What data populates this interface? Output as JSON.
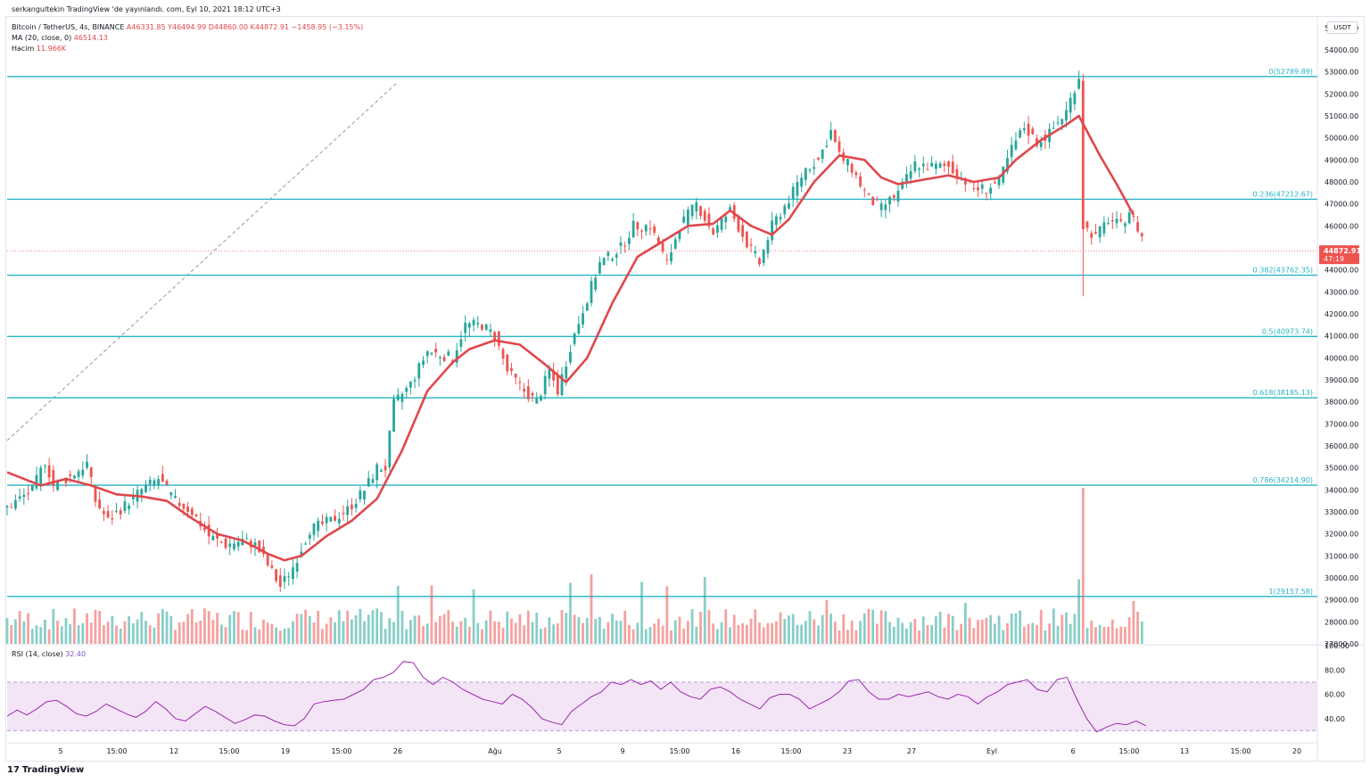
{
  "header": {
    "publisher": "serkangultekin TradingView 'de yayınlandı. com, Eyl 10, 2021 18:12 UTC+3",
    "symbol": "Bitcoin / TetherUS, 4s, BINANCE",
    "ohlc": "A46331.85  Y46494.99  D44860.00  K44872.91  −1458.95 (−3.15%)",
    "ma_label": "MA (20, close, 0)",
    "ma_value": "46514.13",
    "volume_label": "Hacim",
    "volume_value": "11.966K",
    "rsi_label": "RSI (14, close)",
    "rsi_value": "32.40"
  },
  "footer": {
    "brand": "TradingView",
    "logo": "tradingview-logo-icon"
  },
  "currency_badge": "USDT",
  "colors": {
    "up": "#26a69a",
    "down": "#ef5350",
    "ma": "#e0474c",
    "fib": "#26b5c6",
    "rsi_line": "#9c27b0",
    "rsi_band": "#f3e5f5",
    "price_tag": "#ef5350"
  },
  "chart_data": [
    {
      "type": "candlestick",
      "title": "Bitcoin / TetherUS, 4s, BINANCE",
      "ylim": [
        27000,
        55500
      ],
      "y_ticks": [
        "55000.00",
        "54000.00",
        "53000.00",
        "52000.00",
        "51000.00",
        "50000.00",
        "49000.00",
        "48000.00",
        "47000.00",
        "46000.00",
        "45000.00",
        "44000.00",
        "43000.00",
        "42000.00",
        "41000.00",
        "40000.00",
        "39000.00",
        "38000.00",
        "37000.00",
        "36000.00",
        "35000.00",
        "34000.00",
        "33000.00",
        "32000.00",
        "31000.00",
        "30000.00",
        "29000.00",
        "28000.00",
        "27000.00"
      ],
      "x_ticks": [
        "5",
        "15:00",
        "12",
        "15:00",
        "19",
        "15:00",
        "26",
        "Ağu",
        "5",
        "9",
        "15:00",
        "16",
        "15:00",
        "23",
        "27",
        "Eyl",
        "6",
        "15:00",
        "13",
        "15:00",
        "20"
      ],
      "last_price": "44872.91",
      "countdown": "47:19",
      "fibonacci": [
        {
          "level": "0",
          "price": 52789.89,
          "label": "0(52789.89)"
        },
        {
          "level": "0.236",
          "price": 47212.67,
          "label": "0.236(47212.67)"
        },
        {
          "level": "0.382",
          "price": 43762.35,
          "label": "0.382(43762.35)"
        },
        {
          "level": "0.5",
          "price": 40973.74,
          "label": "0.5(40973.74)"
        },
        {
          "level": "0.618",
          "price": 38185.13,
          "label": "0.618(38185.13)"
        },
        {
          "level": "0.786",
          "price": 34214.9,
          "label": "0.786(34214.90)"
        },
        {
          "level": "1",
          "price": 29157.58,
          "label": "1(29157.58)"
        }
      ],
      "close_path": [
        [
          0,
          33200
        ],
        [
          6,
          34000
        ],
        [
          9,
          35300
        ],
        [
          11,
          34200
        ],
        [
          15,
          34600
        ],
        [
          19,
          35200
        ],
        [
          21,
          33500
        ],
        [
          24,
          32600
        ],
        [
          28,
          33300
        ],
        [
          32,
          34000
        ],
        [
          36,
          34500
        ],
        [
          40,
          33500
        ],
        [
          44,
          33000
        ],
        [
          48,
          31900
        ],
        [
          52,
          31500
        ],
        [
          56,
          31700
        ],
        [
          59,
          31500
        ],
        [
          62,
          30600
        ],
        [
          65,
          29600
        ],
        [
          68,
          30500
        ],
        [
          72,
          32200
        ],
        [
          77,
          32600
        ],
        [
          81,
          33100
        ],
        [
          85,
          34000
        ],
        [
          88,
          35000
        ],
        [
          90,
          35000
        ],
        [
          92,
          37900
        ],
        [
          96,
          38800
        ],
        [
          100,
          40300
        ],
        [
          102,
          40200
        ],
        [
          106,
          40000
        ],
        [
          109,
          41500
        ],
        [
          113,
          41500
        ],
        [
          116,
          41000
        ],
        [
          119,
          39400
        ],
        [
          123,
          38500
        ],
        [
          126,
          38000
        ],
        [
          129,
          39400
        ],
        [
          131,
          38500
        ],
        [
          134,
          40500
        ],
        [
          137,
          42200
        ],
        [
          141,
          44300
        ],
        [
          146,
          45000
        ],
        [
          149,
          46000
        ],
        [
          153,
          46000
        ],
        [
          157,
          44300
        ],
        [
          160,
          46000
        ],
        [
          164,
          47000
        ],
        [
          168,
          45700
        ],
        [
          172,
          46700
        ],
        [
          176,
          45200
        ],
        [
          179,
          44300
        ],
        [
          182,
          46000
        ],
        [
          186,
          47200
        ],
        [
          190,
          48600
        ],
        [
          193,
          49000
        ],
        [
          196,
          50300
        ],
        [
          198,
          49200
        ],
        [
          201,
          48600
        ],
        [
          205,
          47200
        ],
        [
          208,
          46800
        ],
        [
          212,
          47500
        ],
        [
          216,
          48800
        ],
        [
          220,
          48700
        ],
        [
          224,
          48700
        ],
        [
          227,
          48200
        ],
        [
          230,
          47700
        ],
        [
          233,
          47700
        ],
        [
          236,
          48000
        ],
        [
          239,
          49500
        ],
        [
          242,
          50500
        ],
        [
          245,
          49800
        ],
        [
          248,
          50200
        ],
        [
          252,
          51200
        ],
        [
          254,
          52300
        ],
        [
          255,
          52800
        ],
        [
          256,
          46000
        ],
        [
          259,
          45500
        ],
        [
          262,
          46300
        ],
        [
          265,
          46000
        ],
        [
          267,
          46700
        ],
        [
          270,
          45500
        ]
      ],
      "ma_path": [
        [
          0,
          34800
        ],
        [
          8,
          34200
        ],
        [
          14,
          34500
        ],
        [
          20,
          34200
        ],
        [
          26,
          33800
        ],
        [
          32,
          33700
        ],
        [
          38,
          33500
        ],
        [
          44,
          32700
        ],
        [
          50,
          32000
        ],
        [
          56,
          31700
        ],
        [
          62,
          31100
        ],
        [
          66,
          30800
        ],
        [
          70,
          31000
        ],
        [
          76,
          31900
        ],
        [
          82,
          32600
        ],
        [
          88,
          33600
        ],
        [
          94,
          35800
        ],
        [
          100,
          38500
        ],
        [
          106,
          39800
        ],
        [
          110,
          40400
        ],
        [
          116,
          40800
        ],
        [
          122,
          40600
        ],
        [
          128,
          39700
        ],
        [
          133,
          38900
        ],
        [
          138,
          40000
        ],
        [
          144,
          42500
        ],
        [
          150,
          44600
        ],
        [
          156,
          45300
        ],
        [
          162,
          46000
        ],
        [
          168,
          46100
        ],
        [
          172,
          46700
        ],
        [
          177,
          46000
        ],
        [
          182,
          45600
        ],
        [
          186,
          46300
        ],
        [
          192,
          48000
        ],
        [
          198,
          49200
        ],
        [
          204,
          49000
        ],
        [
          208,
          48200
        ],
        [
          212,
          47900
        ],
        [
          218,
          48100
        ],
        [
          224,
          48300
        ],
        [
          230,
          48000
        ],
        [
          236,
          48200
        ],
        [
          240,
          49000
        ],
        [
          246,
          49900
        ],
        [
          252,
          50600
        ],
        [
          255,
          51000
        ],
        [
          260,
          49200
        ],
        [
          264,
          47900
        ],
        [
          268,
          46500
        ]
      ],
      "spikes": [
        {
          "index": 256,
          "high": 52900,
          "low": 42800
        }
      ]
    },
    {
      "type": "bar",
      "title": "Hacim",
      "value": "11.966K",
      "spike_indices": [
        93,
        101,
        111,
        134,
        139,
        151,
        157,
        166,
        195,
        228,
        255,
        256,
        268
      ]
    },
    {
      "type": "line",
      "title": "RSI (14, close)",
      "value": "32.40",
      "ylim": [
        20,
        100
      ],
      "y_ticks": [
        "100.00",
        "80.00",
        "60.00",
        "40.00"
      ],
      "band": [
        30,
        70
      ],
      "values": [
        42,
        47,
        43,
        48,
        54,
        55,
        50,
        44,
        42,
        46,
        52,
        48,
        44,
        41,
        46,
        54,
        48,
        40,
        38,
        44,
        50,
        46,
        41,
        36,
        39,
        43,
        42,
        38,
        35,
        34,
        40,
        52,
        54,
        55,
        56,
        60,
        64,
        72,
        74,
        78,
        87,
        86,
        74,
        68,
        74,
        70,
        64,
        60,
        56,
        54,
        52,
        60,
        56,
        49,
        40,
        37,
        35,
        46,
        52,
        58,
        62,
        70,
        68,
        72,
        68,
        71,
        64,
        70,
        62,
        58,
        56,
        64,
        66,
        62,
        56,
        52,
        48,
        57,
        60,
        60,
        56,
        48,
        52,
        56,
        62,
        71,
        72,
        62,
        56,
        56,
        60,
        58,
        60,
        62,
        58,
        56,
        60,
        58,
        52,
        58,
        62,
        68,
        70,
        72,
        64,
        62,
        72,
        74,
        56,
        40,
        29,
        33,
        36,
        35,
        38,
        34
      ]
    }
  ]
}
